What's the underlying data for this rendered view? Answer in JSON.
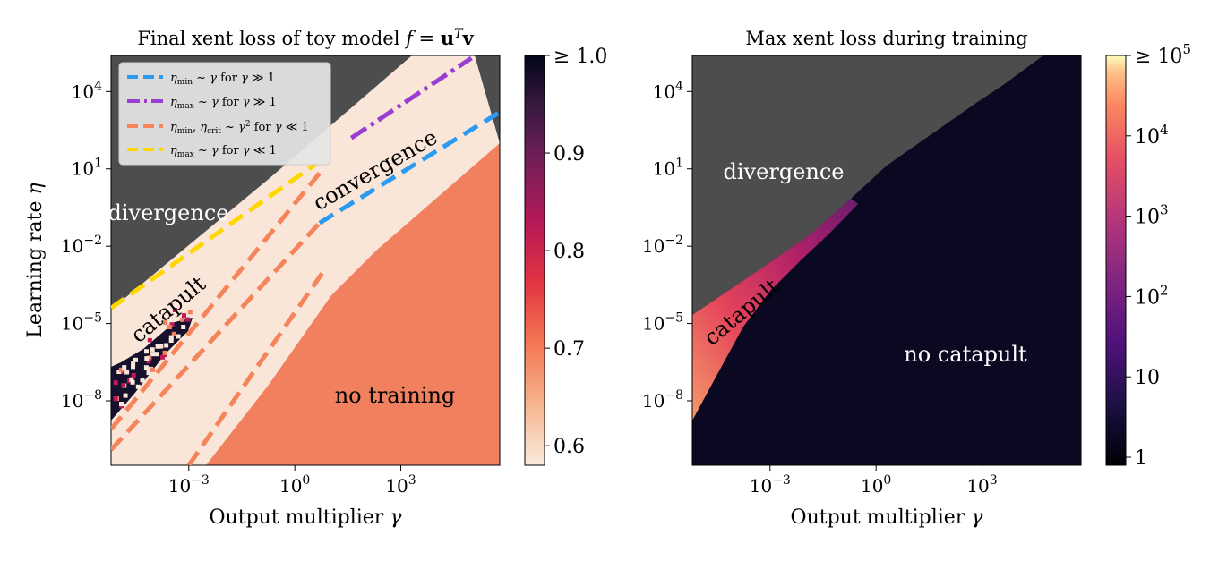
{
  "chart_data": [
    {
      "type": "heatmap",
      "title": "Final xent loss of toy model f = u^T v",
      "xlabel": "Output multiplier γ",
      "ylabel": "Learning rate η",
      "x_scale": "log10",
      "y_scale": "log10",
      "xlim_log10": [
        -5.2,
        5.8
      ],
      "ylim_log10": [
        -10.5,
        5.4
      ],
      "x_ticks": [
        {
          "value": -3,
          "label": "10^-3"
        },
        {
          "value": 0,
          "label": "10^0"
        },
        {
          "value": 3,
          "label": "10^3"
        }
      ],
      "y_ticks": [
        {
          "value": 4,
          "label": "10^4"
        },
        {
          "value": 1,
          "label": "10^1"
        },
        {
          "value": -2,
          "label": "10^-2"
        },
        {
          "value": -5,
          "label": "10^-5"
        },
        {
          "value": -8,
          "label": "10^-8"
        }
      ],
      "colorbar": {
        "colormap": "rocket_r",
        "range": [
          0.58,
          1.0
        ],
        "ticks": [
          {
            "value": 1.0,
            "label": "≥ 1.0"
          },
          {
            "value": 0.9,
            "label": "0.9"
          },
          {
            "value": 0.8,
            "label": "0.8"
          },
          {
            "value": 0.7,
            "label": "0.7"
          },
          {
            "value": 0.6,
            "label": "0.6"
          }
        ]
      },
      "regions": [
        {
          "label": "divergence",
          "color": "#ffffff",
          "rotation": 0
        },
        {
          "label": "convergence",
          "color": "#000000",
          "rotation": -30
        },
        {
          "label": "catapult",
          "color": "#000000",
          "rotation": -40
        },
        {
          "label": "no training",
          "color": "#000000",
          "rotation": 0
        }
      ],
      "legend": {
        "placement": "upper-left",
        "entries": [
          {
            "label": "η_min ~ γ for γ ≫ 1",
            "color": "#2b9af3",
            "dash": "dashed"
          },
          {
            "label": "η_max ~ γ for γ ≫ 1",
            "color": "#9a3ed2",
            "dash": "dashdot"
          },
          {
            "label": "η_min, η_crit ~ γ² for γ ≪ 1",
            "color": "#f5845a",
            "dash": "dashed"
          },
          {
            "label": "η_max ~ γ for γ ≪ 1",
            "color": "#ffd700",
            "dash": "dashed"
          }
        ]
      },
      "series": [
        {
          "name": "eta_min_gamma_large",
          "points_log10": [
            [
              0.7,
              -1.1
            ],
            [
              5.8,
              3.2
            ]
          ]
        },
        {
          "name": "eta_max_gamma_large",
          "points_log10": [
            [
              1.6,
              2.2
            ],
            [
              5.0,
              5.3
            ]
          ]
        },
        {
          "name": "eta_min_gamma_small",
          "points_log10": [
            [
              -5.2,
              -9.9
            ],
            [
              0.7,
              -1.1
            ]
          ]
        },
        {
          "name": "eta_crit_gamma_small",
          "points_log10": [
            [
              -5.2,
              -9.1
            ],
            [
              0.8,
              1.0
            ]
          ]
        },
        {
          "name": "eta_crit_lower_branch",
          "points_log10": [
            [
              -3.0,
              -10.5
            ],
            [
              0.8,
              -3.0
            ]
          ]
        },
        {
          "name": "eta_max_gamma_small",
          "points_log10": [
            [
              -5.2,
              -4.4
            ],
            [
              0.6,
              1.2
            ]
          ]
        }
      ]
    },
    {
      "type": "heatmap",
      "title": "Max xent loss during training",
      "xlabel": "Output multiplier γ",
      "ylabel": "",
      "x_scale": "log10",
      "y_scale": "log10",
      "xlim_log10": [
        -5.2,
        5.8
      ],
      "ylim_log10": [
        -10.5,
        5.4
      ],
      "x_ticks": [
        {
          "value": -3,
          "label": "10^-3"
        },
        {
          "value": 0,
          "label": "10^0"
        },
        {
          "value": 3,
          "label": "10^3"
        }
      ],
      "y_ticks": [
        {
          "value": 4,
          "label": "10^4"
        },
        {
          "value": 1,
          "label": "10^1"
        },
        {
          "value": -2,
          "label": "10^-2"
        },
        {
          "value": -5,
          "label": "10^-5"
        },
        {
          "value": -8,
          "label": "10^-8"
        }
      ],
      "colorbar": {
        "colormap": "magma",
        "scale": "log10",
        "range_log10": [
          -0.1,
          5.0
        ],
        "ticks": [
          {
            "value": 5,
            "label": "≥ 10^5"
          },
          {
            "value": 4,
            "label": "10^4"
          },
          {
            "value": 3,
            "label": "10^3"
          },
          {
            "value": 2,
            "label": "10^2"
          },
          {
            "value": 1,
            "label": "10"
          },
          {
            "value": 0,
            "label": "1"
          }
        ]
      },
      "regions": [
        {
          "label": "divergence",
          "color": "#ffffff",
          "rotation": 0
        },
        {
          "label": "catapult",
          "color": "#000000",
          "rotation": -40
        },
        {
          "label": "no catapult",
          "color": "#ffffff",
          "rotation": 0
        }
      ]
    }
  ],
  "colors": {
    "divergence_gray": "#4d4d4d",
    "converged_cream": "#fae6d9",
    "no_training_orange": "#f1805e",
    "catapult_dark": "#0d0b24",
    "no_catapult_dark": "#0b0922"
  }
}
